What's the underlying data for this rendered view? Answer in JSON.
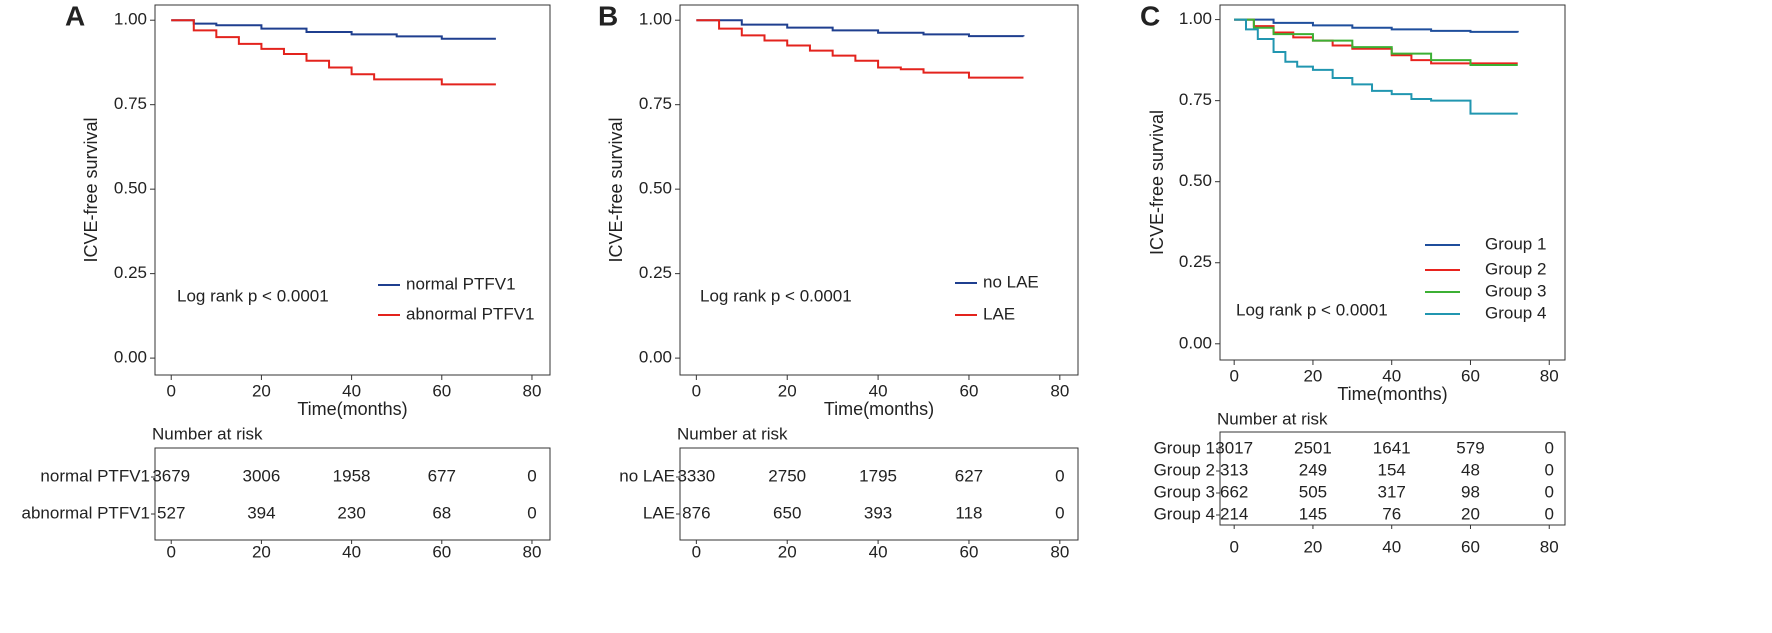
{
  "chart_data": [
    {
      "type": "line",
      "step": true,
      "panel_label": "A",
      "xlabel": "Time(months)",
      "ylabel": "ICVE-free survival",
      "annotation": "Log rank p < 0.0001",
      "xlim": [
        -3.6,
        84
      ],
      "ylim": [
        -0.05,
        1.045
      ],
      "xticks": [
        0,
        20,
        40,
        60,
        80
      ],
      "yticks": [
        {
          "value": 0,
          "label": "0.00"
        },
        {
          "value": 0.25,
          "label": "0.25"
        },
        {
          "value": 0.5,
          "label": "0.50"
        },
        {
          "value": 0.75,
          "label": "0.75"
        },
        {
          "value": 1,
          "label": "1.00"
        }
      ],
      "series": [
        {
          "name": "normal PTFV1",
          "color": "#1f3f8f",
          "x": [
            0,
            5,
            10,
            20,
            30,
            40,
            50,
            60,
            72
          ],
          "values": [
            1,
            0.99,
            0.985,
            0.975,
            0.965,
            0.958,
            0.952,
            0.945,
            0.945
          ]
        },
        {
          "name": "abnormal PTFV1",
          "color": "#e3231d",
          "x": [
            0,
            5,
            10,
            15,
            20,
            25,
            30,
            35,
            40,
            45,
            50,
            60,
            72
          ],
          "values": [
            1,
            0.97,
            0.95,
            0.93,
            0.915,
            0.9,
            0.88,
            0.86,
            0.84,
            0.825,
            0.825,
            0.81,
            0.81
          ]
        }
      ],
      "risk_table": {
        "title": "Number at risk",
        "xticks": [
          0,
          20,
          40,
          60,
          80
        ],
        "rows": [
          {
            "name": "normal PTFV1",
            "values": [
              3679,
              3006,
              1958,
              677,
              0
            ]
          },
          {
            "name": "abnormal PTFV1",
            "values": [
              527,
              394,
              230,
              68,
              0
            ]
          }
        ]
      }
    },
    {
      "type": "line",
      "step": true,
      "panel_label": "B",
      "xlabel": "Time(months)",
      "ylabel": "ICVE-free survival",
      "annotation": "Log rank p < 0.0001",
      "xlim": [
        -3.6,
        84
      ],
      "ylim": [
        -0.05,
        1.045
      ],
      "xticks": [
        0,
        20,
        40,
        60,
        80
      ],
      "yticks": [
        {
          "value": 0,
          "label": "0.00"
        },
        {
          "value": 0.25,
          "label": "0.25"
        },
        {
          "value": 0.5,
          "label": "0.50"
        },
        {
          "value": 0.75,
          "label": "0.75"
        },
        {
          "value": 1,
          "label": "1.00"
        }
      ],
      "series": [
        {
          "name": "no LAE",
          "color": "#1f3f8f",
          "x": [
            0,
            10,
            20,
            30,
            40,
            50,
            60,
            72
          ],
          "values": [
            1,
            0.987,
            0.978,
            0.97,
            0.963,
            0.958,
            0.953,
            0.952
          ]
        },
        {
          "name": "LAE",
          "color": "#e3231d",
          "x": [
            0,
            5,
            10,
            15,
            20,
            25,
            30,
            35,
            40,
            45,
            50,
            55,
            60,
            72
          ],
          "values": [
            1,
            0.975,
            0.955,
            0.94,
            0.925,
            0.91,
            0.895,
            0.88,
            0.86,
            0.855,
            0.845,
            0.845,
            0.83,
            0.83
          ]
        }
      ],
      "risk_table": {
        "title": "Number at risk",
        "xticks": [
          0,
          20,
          40,
          60,
          80
        ],
        "rows": [
          {
            "name": "no LAE",
            "values": [
              3330,
              2750,
              1795,
              627,
              0
            ]
          },
          {
            "name": "LAE",
            "values": [
              876,
              650,
              393,
              118,
              0
            ]
          }
        ]
      }
    },
    {
      "type": "line",
      "step": true,
      "panel_label": "C",
      "xlabel": "Time(months)",
      "ylabel": "ICVE-free survival",
      "annotation": "Log rank p < 0.0001",
      "xlim": [
        -3.6,
        84
      ],
      "ylim": [
        -0.05,
        1.045
      ],
      "xticks": [
        0,
        20,
        40,
        60,
        80
      ],
      "yticks": [
        {
          "value": 0,
          "label": "0.00"
        },
        {
          "value": 0.25,
          "label": "0.25"
        },
        {
          "value": 0.5,
          "label": "0.50"
        },
        {
          "value": 0.75,
          "label": "0.75"
        },
        {
          "value": 1,
          "label": "1.00"
        }
      ],
      "series": [
        {
          "name": "Group 1",
          "color": "#1f4e9c",
          "x": [
            0,
            10,
            20,
            30,
            40,
            50,
            60,
            72
          ],
          "values": [
            1,
            0.99,
            0.982,
            0.975,
            0.97,
            0.965,
            0.962,
            0.96
          ]
        },
        {
          "name": "Group 2",
          "color": "#e8231e",
          "x": [
            0,
            5,
            10,
            15,
            20,
            25,
            30,
            40,
            45,
            50,
            60,
            72
          ],
          "values": [
            1,
            0.98,
            0.96,
            0.945,
            0.935,
            0.92,
            0.91,
            0.89,
            0.875,
            0.865,
            0.865,
            0.865
          ]
        },
        {
          "name": "Group 3",
          "color": "#3cb034",
          "x": [
            0,
            5,
            10,
            20,
            30,
            40,
            50,
            60,
            72
          ],
          "values": [
            1,
            0.975,
            0.955,
            0.935,
            0.915,
            0.895,
            0.875,
            0.86,
            0.86
          ]
        },
        {
          "name": "Group 4",
          "color": "#2196b0",
          "x": [
            0,
            3,
            6,
            10,
            13,
            16,
            20,
            25,
            30,
            35,
            40,
            45,
            50,
            60,
            72
          ],
          "values": [
            1,
            0.97,
            0.94,
            0.9,
            0.87,
            0.855,
            0.845,
            0.82,
            0.8,
            0.78,
            0.77,
            0.755,
            0.75,
            0.71,
            0.71
          ]
        }
      ],
      "risk_table": {
        "title": "Number at risk",
        "xticks": [
          0,
          20,
          40,
          60,
          80
        ],
        "rows": [
          {
            "name": "Group 1",
            "values": [
              3017,
              2501,
              1641,
              579,
              0
            ]
          },
          {
            "name": "Group 2",
            "values": [
              313,
              249,
              154,
              48,
              0
            ]
          },
          {
            "name": "Group 3",
            "values": [
              662,
              505,
              317,
              98,
              0
            ]
          },
          {
            "name": "Group 4",
            "values": [
              214,
              145,
              76,
              20,
              0
            ]
          }
        ]
      }
    }
  ]
}
